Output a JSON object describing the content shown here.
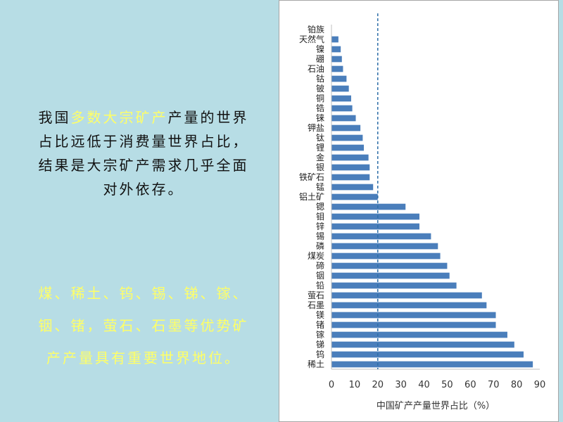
{
  "left_text": {
    "line1_pre": "我国",
    "line1_hl": "多数大宗矿产",
    "line1_post": "产量的世界",
    "line2": "占比远低于消费量世界占比，",
    "line3": "结果是大宗矿产需求几乎全面",
    "line4": "对外依存。"
  },
  "yellow_text": {
    "line1": "煤、稀土、钨、锡、锑、镓、",
    "line2": "铟、锗，萤石、石墨等优势矿",
    "line3": "产产量具有重要世界地位。"
  },
  "colors": {
    "bar": "#4a7ebb",
    "reference_line": "#2e6ea8",
    "highlight": "#ffff66",
    "background": "#b7dde5"
  },
  "chart_data": {
    "type": "bar",
    "orientation": "horizontal",
    "categories": [
      "铂族",
      "天然气",
      "镍",
      "硼",
      "石油",
      "钴",
      "铍",
      "铜",
      "锆",
      "铼",
      "钾盐",
      "钛",
      "锂",
      "金",
      "银",
      "铁矿石",
      "锰",
      "铝土矿",
      "锶",
      "钼",
      "锌",
      "锡",
      "磷",
      "煤炭",
      "碲",
      "铟",
      "铅",
      "萤石",
      "石墨",
      "镁",
      "锗",
      "镓",
      "锑",
      "钨",
      "稀土"
    ],
    "values": [
      0,
      3,
      4,
      4.5,
      5,
      6.5,
      7.5,
      8.5,
      9,
      10.5,
      12.5,
      13.5,
      14,
      16,
      16.5,
      16.5,
      18,
      20,
      32,
      38,
      38,
      43,
      46,
      47,
      50,
      51,
      54,
      65,
      67,
      71,
      71,
      76,
      79,
      83,
      87
    ],
    "xlabel": "中国矿产产量世界占比（%）",
    "xlim": [
      0,
      90
    ],
    "xticks": [
      "0",
      "10",
      "20",
      "30",
      "40",
      "50",
      "60",
      "70",
      "80",
      "90"
    ],
    "reference_line_x": 20
  }
}
